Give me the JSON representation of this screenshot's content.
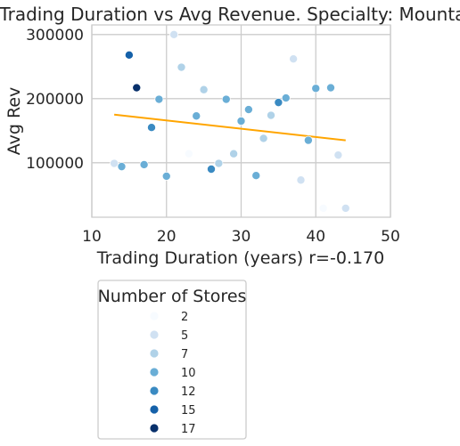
{
  "chart_data": {
    "type": "scatter",
    "title": "Trading Duration vs Avg Revenue. Specialty: Mountain",
    "xlabel": "Trading Duration (years)   r=-0.170",
    "ylabel": "Avg Rev",
    "xlim": [
      10,
      50
    ],
    "ylim": [
      15000,
      315000
    ],
    "xticks": [
      "10",
      "20",
      "30",
      "40",
      "50"
    ],
    "yticks": [
      "100000",
      "200000",
      "300000"
    ],
    "grid": true,
    "trendline": {
      "x": [
        13,
        44
      ],
      "y": [
        175000,
        135000
      ],
      "color": "#ffa500"
    },
    "legend": {
      "title": "Number of Stores",
      "placement": "below",
      "entries": [
        {
          "label": "2",
          "value": 2,
          "color": "#f7fbff"
        },
        {
          "label": "5",
          "value": 5,
          "color": "#d0e1f2"
        },
        {
          "label": "7",
          "value": 7,
          "color": "#b0d2e8"
        },
        {
          "label": "10",
          "value": 10,
          "color": "#6aaed6"
        },
        {
          "label": "12",
          "value": 12,
          "color": "#3a8ac2"
        },
        {
          "label": "15",
          "value": 15,
          "color": "#1561a9"
        },
        {
          "label": "17",
          "value": 17,
          "color": "#08306b"
        }
      ]
    },
    "points": [
      {
        "x": 21,
        "y": 300000,
        "stores": 5
      },
      {
        "x": 15,
        "y": 268000,
        "stores": 15
      },
      {
        "x": 22,
        "y": 249000,
        "stores": 7
      },
      {
        "x": 37,
        "y": 262000,
        "stores": 5
      },
      {
        "x": 16,
        "y": 217000,
        "stores": 17
      },
      {
        "x": 25,
        "y": 214000,
        "stores": 7
      },
      {
        "x": 19,
        "y": 199000,
        "stores": 10
      },
      {
        "x": 28,
        "y": 199000,
        "stores": 10
      },
      {
        "x": 36,
        "y": 201000,
        "stores": 10
      },
      {
        "x": 40,
        "y": 216000,
        "stores": 10
      },
      {
        "x": 42,
        "y": 217000,
        "stores": 10
      },
      {
        "x": 35,
        "y": 194000,
        "stores": 12
      },
      {
        "x": 31,
        "y": 183000,
        "stores": 10
      },
      {
        "x": 24,
        "y": 173000,
        "stores": 10
      },
      {
        "x": 34,
        "y": 174000,
        "stores": 7
      },
      {
        "x": 30,
        "y": 165000,
        "stores": 10
      },
      {
        "x": 18,
        "y": 155000,
        "stores": 12
      },
      {
        "x": 33,
        "y": 138000,
        "stores": 7
      },
      {
        "x": 39,
        "y": 135000,
        "stores": 10
      },
      {
        "x": 23,
        "y": 114000,
        "stores": 2
      },
      {
        "x": 29,
        "y": 114000,
        "stores": 7
      },
      {
        "x": 43,
        "y": 112000,
        "stores": 5
      },
      {
        "x": 13,
        "y": 99000,
        "stores": 5
      },
      {
        "x": 14,
        "y": 94000,
        "stores": 10
      },
      {
        "x": 17,
        "y": 97000,
        "stores": 10
      },
      {
        "x": 27,
        "y": 99000,
        "stores": 7
      },
      {
        "x": 26,
        "y": 90000,
        "stores": 12
      },
      {
        "x": 20,
        "y": 79000,
        "stores": 10
      },
      {
        "x": 32,
        "y": 80000,
        "stores": 10
      },
      {
        "x": 38,
        "y": 73000,
        "stores": 5
      },
      {
        "x": 41,
        "y": 29000,
        "stores": 2
      },
      {
        "x": 44,
        "y": 29000,
        "stores": 5
      }
    ]
  }
}
